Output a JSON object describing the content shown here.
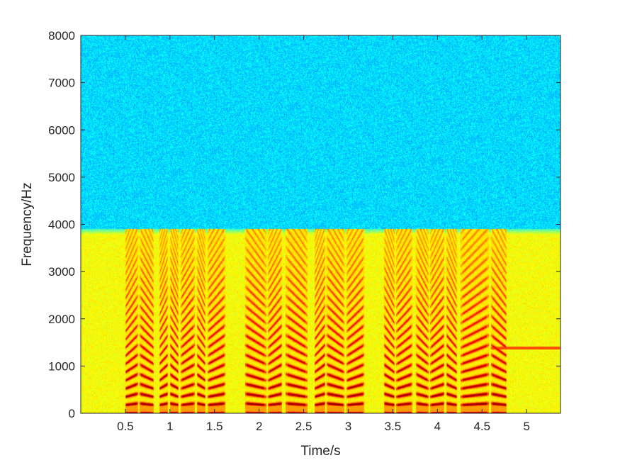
{
  "chart_data": {
    "type": "heatmap",
    "subtype": "spectrogram",
    "title": "",
    "xlabel": "Time/s",
    "ylabel": "Frequency/Hz",
    "xlim": [
      0,
      5.38
    ],
    "ylim": [
      0,
      8000
    ],
    "x_ticks": [
      0.5,
      1,
      1.5,
      2,
      2.5,
      3,
      3.5,
      4,
      4.5,
      5
    ],
    "x_tick_labels": [
      "0.5",
      "1",
      "1.5",
      "2",
      "2.5",
      "3",
      "3.5",
      "4",
      "4.5",
      "5"
    ],
    "y_ticks": [
      0,
      1000,
      2000,
      3000,
      4000,
      5000,
      6000,
      7000,
      8000
    ],
    "y_tick_labels": [
      "0",
      "1000",
      "2000",
      "3000",
      "4000",
      "5000",
      "6000",
      "7000",
      "8000"
    ],
    "colormap": "jet",
    "grid": false,
    "band_limit_hz": 3900,
    "background_levels": {
      "above_band": 0.34,
      "below_band": 0.62
    },
    "voiced_segments_s": [
      [
        0.5,
        0.64
      ],
      [
        0.66,
        0.82
      ],
      [
        0.88,
        0.98
      ],
      [
        1.0,
        1.1
      ],
      [
        1.12,
        1.28
      ],
      [
        1.3,
        1.4
      ],
      [
        1.42,
        1.62
      ],
      [
        1.84,
        2.08
      ],
      [
        2.1,
        2.26
      ],
      [
        2.3,
        2.54
      ],
      [
        2.62,
        2.74
      ],
      [
        2.76,
        2.96
      ],
      [
        2.98,
        3.18
      ],
      [
        3.4,
        3.52
      ],
      [
        3.54,
        3.72
      ],
      [
        3.76,
        3.9
      ],
      [
        3.92,
        4.08
      ],
      [
        4.1,
        4.22
      ],
      [
        4.26,
        4.58
      ],
      [
        4.6,
        4.78
      ]
    ],
    "pitch_hz": 190,
    "harmonic_energy_max_hz": 3600,
    "narrowband_tone": {
      "frequency_hz": 1380,
      "start_s": 4.6,
      "end_s": 5.38
    }
  }
}
